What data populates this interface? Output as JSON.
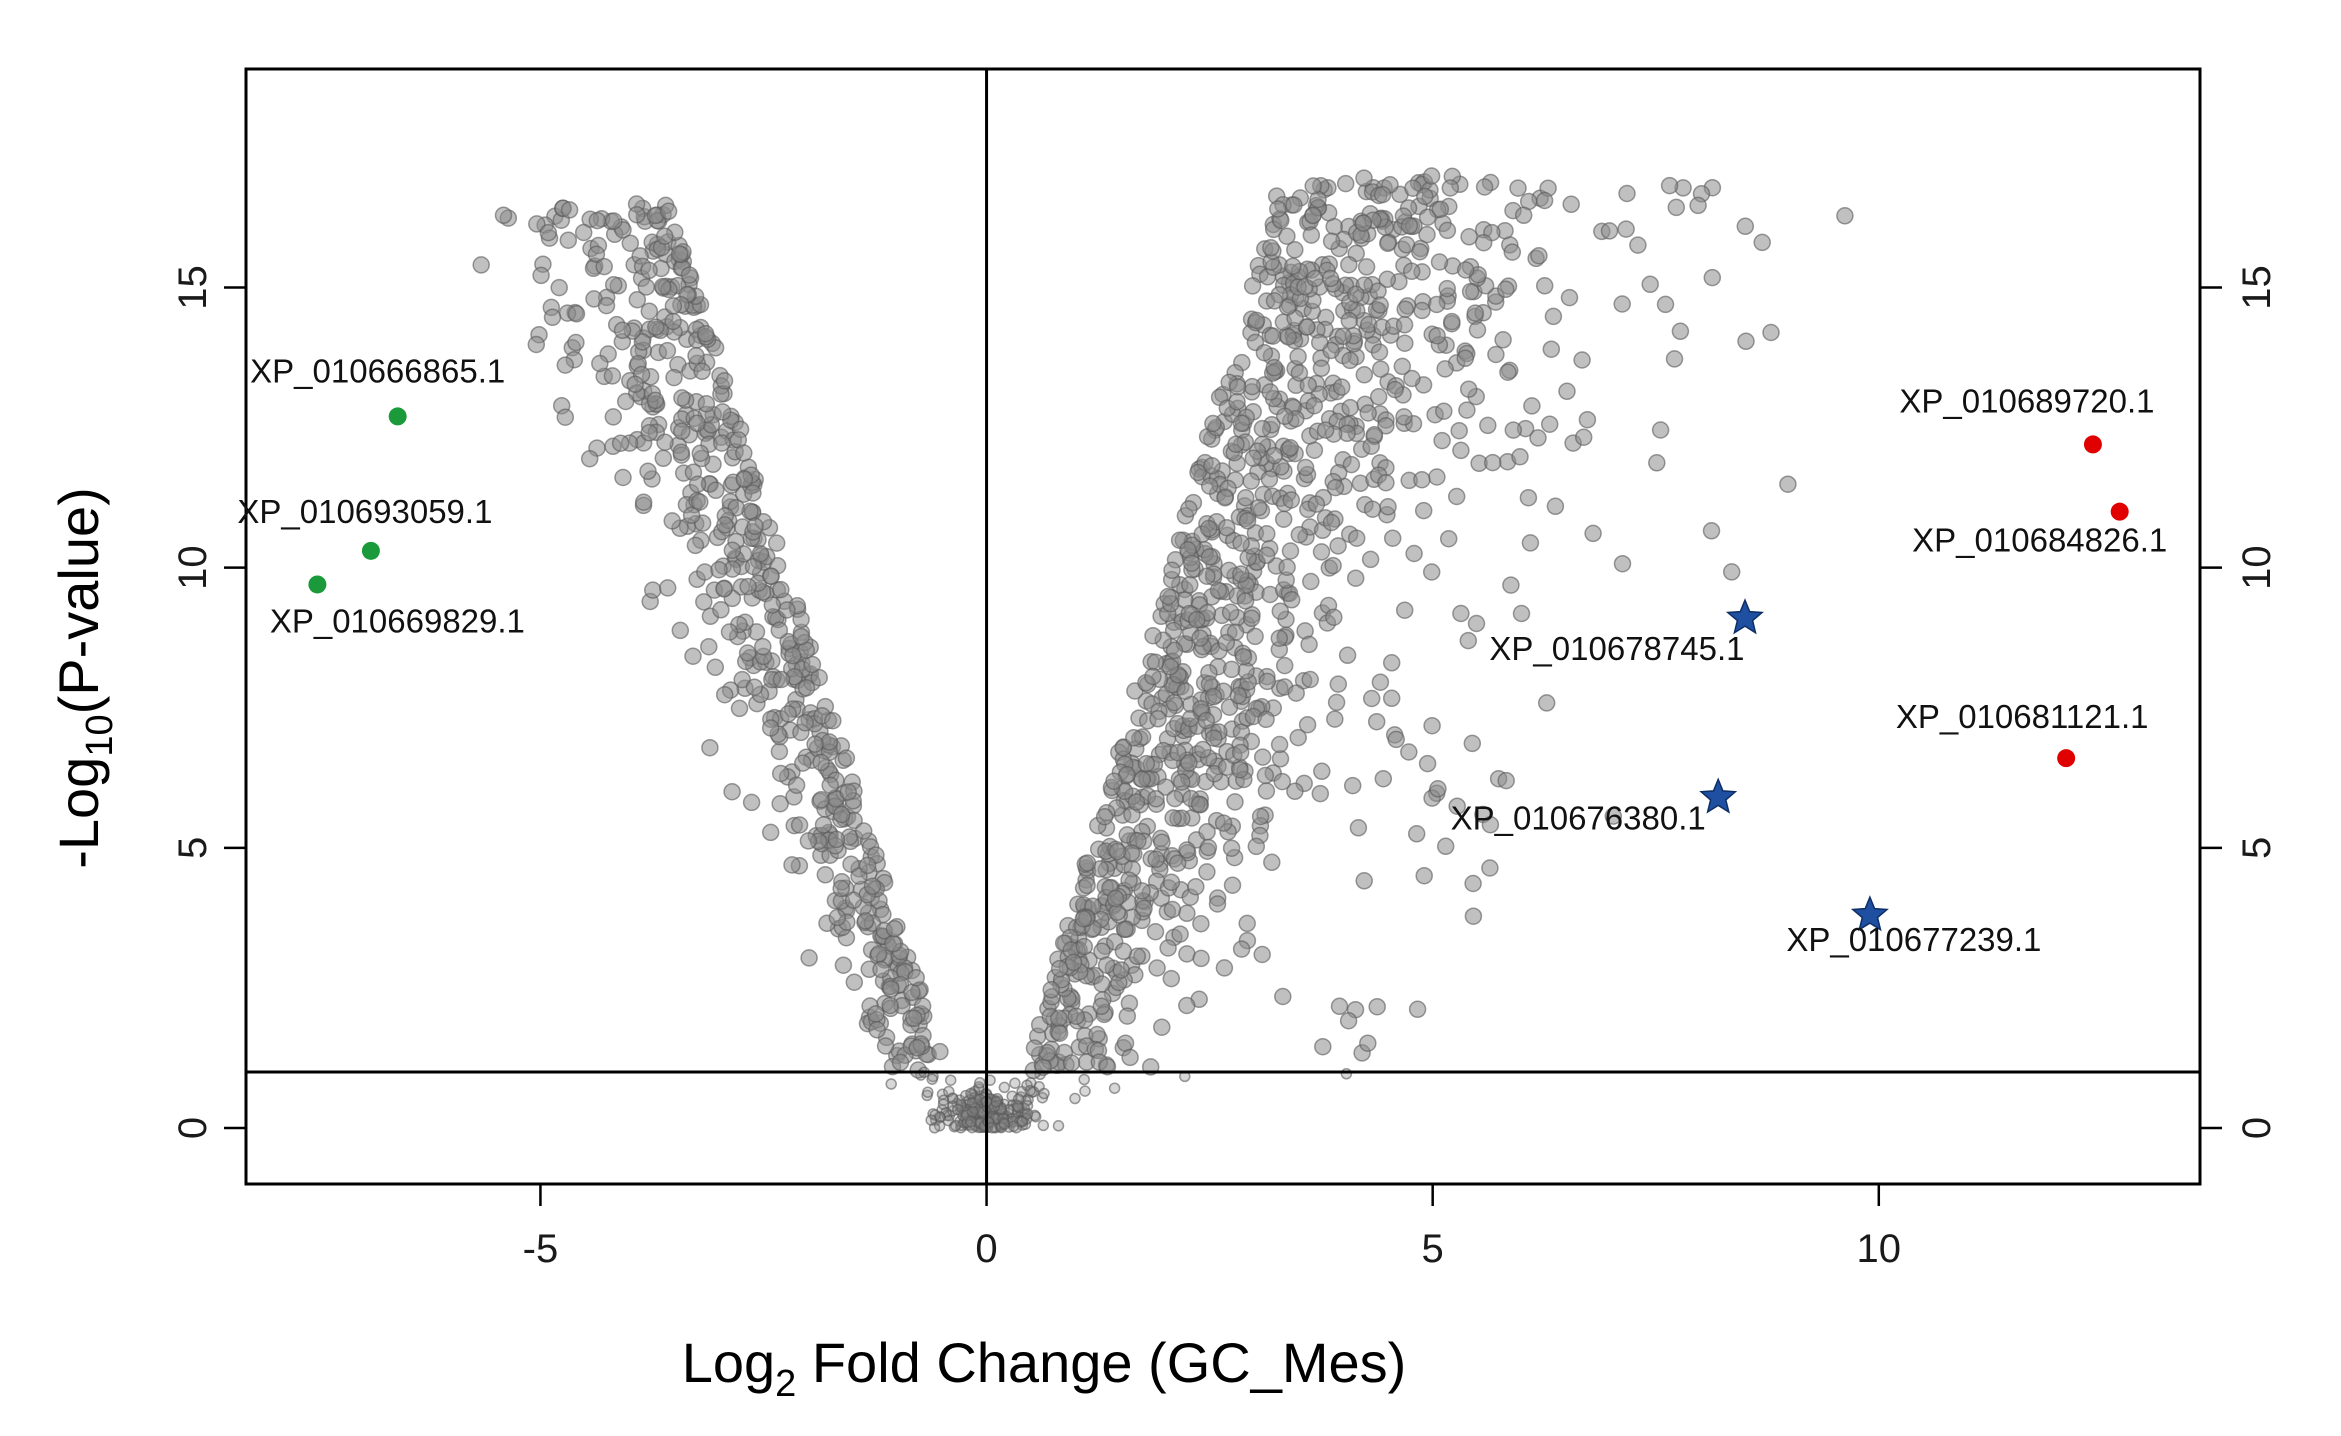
{
  "chart_data": {
    "type": "scatter",
    "title": "",
    "xlabel": {
      "prefix": "Log",
      "sub": "2",
      "suffix": " Fold Change (GC_Mes)"
    },
    "ylabel": {
      "prefix": "-Log",
      "sub": "10",
      "suffix": "(P-value)"
    },
    "xlim": [
      -8.3,
      13.6
    ],
    "ylim": [
      -1.0,
      18.9
    ],
    "x_ticks": [
      -5,
      0,
      5,
      10
    ],
    "y_ticks": [
      0,
      5,
      10,
      15
    ],
    "x_tick_labels": [
      "-5",
      "0",
      "5",
      "10"
    ],
    "y_tick_labels": [
      "0",
      "5",
      "10",
      "15"
    ],
    "y_ticks_right": true,
    "grid": false,
    "legend": "none",
    "threshold_lines": {
      "vertical_x": 0,
      "horizontal_y": 1.0
    },
    "colors": {
      "background_point_fill": "#8c8c8c",
      "background_point_stroke": "#5a5a5a",
      "down_regulated": "#1a9a3a",
      "up_regulated": "#e00000",
      "star_marker": "#1f4fa0"
    },
    "background_points_note_count": 2000,
    "highlighted_points": [
      {
        "label": "XP_010666865.1",
        "x": -6.6,
        "y": 12.7,
        "marker": "circle",
        "group": "down_regulated"
      },
      {
        "label": "XP_010693059.1",
        "x": -6.9,
        "y": 10.3,
        "marker": "circle",
        "group": "down_regulated"
      },
      {
        "label": "XP_010669829.1",
        "x": -7.5,
        "y": 9.7,
        "marker": "circle",
        "group": "down_regulated"
      },
      {
        "label": "XP_010689720.1",
        "x": 12.4,
        "y": 12.2,
        "marker": "circle",
        "group": "up_regulated"
      },
      {
        "label": "XP_010684826.1",
        "x": 12.7,
        "y": 11.0,
        "marker": "circle",
        "group": "up_regulated"
      },
      {
        "label": "XP_010681121.1",
        "x": 12.1,
        "y": 6.6,
        "marker": "circle",
        "group": "up_regulated"
      },
      {
        "label": "XP_010678745.1",
        "x": 8.5,
        "y": 9.1,
        "marker": "star",
        "group": "star_marker"
      },
      {
        "label": "XP_010676380.1",
        "x": 8.2,
        "y": 5.9,
        "marker": "star",
        "group": "star_marker"
      },
      {
        "label": "XP_010677239.1",
        "x": 9.9,
        "y": 3.8,
        "marker": "star",
        "group": "star_marker"
      }
    ]
  }
}
